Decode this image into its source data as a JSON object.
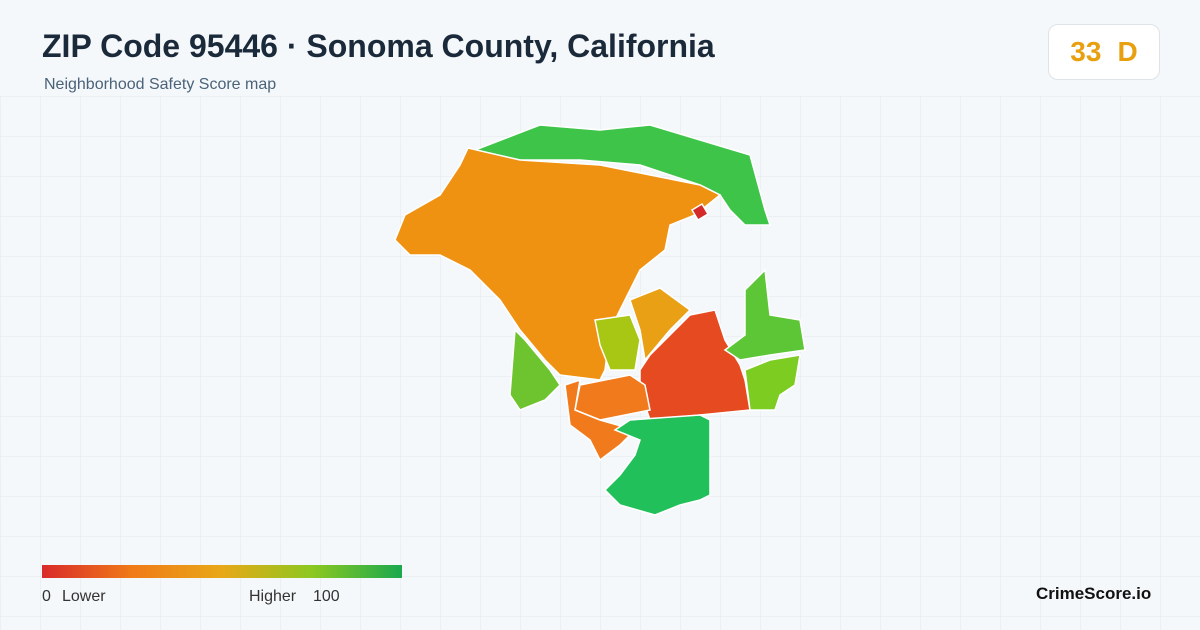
{
  "header": {
    "title": "ZIP Code 95446 · Sonoma County, California",
    "subtitle": "Neighborhood Safety Score map"
  },
  "score": {
    "value": 33,
    "grade": "D"
  },
  "legend": {
    "min": 0,
    "min_label": "Lower",
    "max_label": "Higher",
    "max": 100
  },
  "brand": "CrimeScore.io"
}
